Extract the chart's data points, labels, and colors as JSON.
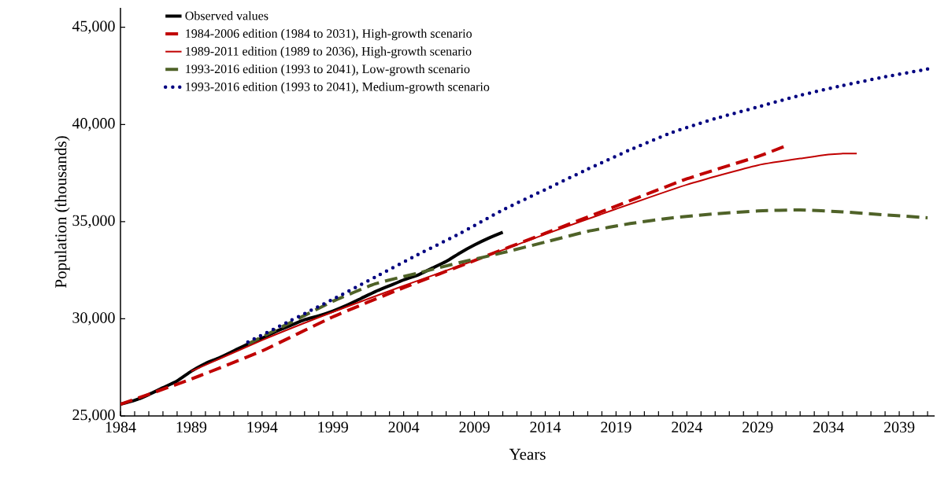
{
  "chart_data": {
    "type": "line",
    "xlabel": "Years",
    "ylabel": "Population (thousands)",
    "xlim": [
      1984,
      2041.5
    ],
    "ylim": [
      25000,
      46000
    ],
    "xticks": [
      {
        "value": 1984,
        "label": "1984"
      },
      {
        "value": 1985,
        "label": null
      },
      {
        "value": 1986,
        "label": null
      },
      {
        "value": 1987,
        "label": null
      },
      {
        "value": 1988,
        "label": null
      },
      {
        "value": 1989,
        "label": "1989"
      },
      {
        "value": 1990,
        "label": null
      },
      {
        "value": 1991,
        "label": null
      },
      {
        "value": 1992,
        "label": null
      },
      {
        "value": 1993,
        "label": null
      },
      {
        "value": 1994,
        "label": "1994"
      },
      {
        "value": 1995,
        "label": null
      },
      {
        "value": 1996,
        "label": null
      },
      {
        "value": 1997,
        "label": null
      },
      {
        "value": 1998,
        "label": null
      },
      {
        "value": 1999,
        "label": "1999"
      },
      {
        "value": 2000,
        "label": null
      },
      {
        "value": 2001,
        "label": null
      },
      {
        "value": 2002,
        "label": null
      },
      {
        "value": 2003,
        "label": null
      },
      {
        "value": 2004,
        "label": "2004"
      },
      {
        "value": 2005,
        "label": null
      },
      {
        "value": 2006,
        "label": null
      },
      {
        "value": 2007,
        "label": null
      },
      {
        "value": 2008,
        "label": null
      },
      {
        "value": 2009,
        "label": "2009"
      },
      {
        "value": 2010,
        "label": null
      },
      {
        "value": 2011,
        "label": null
      },
      {
        "value": 2012,
        "label": null
      },
      {
        "value": 2013,
        "label": null
      },
      {
        "value": 2014,
        "label": "2014"
      },
      {
        "value": 2015,
        "label": null
      },
      {
        "value": 2016,
        "label": null
      },
      {
        "value": 2017,
        "label": null
      },
      {
        "value": 2018,
        "label": null
      },
      {
        "value": 2019,
        "label": "2019"
      },
      {
        "value": 2020,
        "label": null
      },
      {
        "value": 2021,
        "label": null
      },
      {
        "value": 2022,
        "label": null
      },
      {
        "value": 2023,
        "label": null
      },
      {
        "value": 2024,
        "label": "2024"
      },
      {
        "value": 2025,
        "label": null
      },
      {
        "value": 2026,
        "label": null
      },
      {
        "value": 2027,
        "label": null
      },
      {
        "value": 2028,
        "label": null
      },
      {
        "value": 2029,
        "label": "2029"
      },
      {
        "value": 2030,
        "label": null
      },
      {
        "value": 2031,
        "label": null
      },
      {
        "value": 2032,
        "label": null
      },
      {
        "value": 2033,
        "label": null
      },
      {
        "value": 2034,
        "label": "2034"
      },
      {
        "value": 2035,
        "label": null
      },
      {
        "value": 2036,
        "label": null
      },
      {
        "value": 2037,
        "label": null
      },
      {
        "value": 2038,
        "label": null
      },
      {
        "value": 2039,
        "label": "2039"
      },
      {
        "value": 2040,
        "label": null
      },
      {
        "value": 2041,
        "label": null
      }
    ],
    "yticks": [
      {
        "value": 25000,
        "label": "25,000"
      },
      {
        "value": 30000,
        "label": "30,000"
      },
      {
        "value": 35000,
        "label": "35,000"
      },
      {
        "value": 40000,
        "label": "40,000"
      },
      {
        "value": 45000,
        "label": "45,000"
      }
    ],
    "grid": false,
    "legend": "top left",
    "marker": "none",
    "series": [
      {
        "name": "Observed values",
        "color": "#000000",
        "line_style": "solid",
        "x": [
          1984,
          1985,
          1986,
          1987,
          1988,
          1989,
          1990,
          1991,
          1992,
          1993,
          1994,
          1995,
          1996,
          1997,
          1998,
          1999,
          2000,
          2001,
          2002,
          2003,
          2004,
          2005,
          2006,
          2007,
          2008,
          2009,
          2010,
          2011
        ],
        "values": [
          25600,
          25800,
          26100,
          26450,
          26800,
          27300,
          27700,
          28000,
          28350,
          28700,
          29000,
          29350,
          29650,
          29950,
          30150,
          30400,
          30700,
          31050,
          31400,
          31700,
          32000,
          32250,
          32600,
          32950,
          33400,
          33800,
          34150,
          34450
        ]
      },
      {
        "name": "1984-2006 edition (1984 to 2031), High-growth scenario",
        "color": "#c00000",
        "line_style": "dashed",
        "x": [
          1984,
          1989,
          1994,
          1999,
          2004,
          2009,
          2014,
          2019,
          2024,
          2029,
          2031
        ],
        "values": [
          25600,
          26900,
          28350,
          30100,
          31600,
          33000,
          34400,
          35800,
          37200,
          38350,
          38900
        ]
      },
      {
        "name": "1989-2011 edition (1989 to 2036), High-growth scenario",
        "color": "#c00000",
        "line_style": "solid",
        "x": [
          1989,
          1994,
          1999,
          2004,
          2009,
          2014,
          2019,
          2024,
          2029,
          2034,
          2035,
          2036
        ],
        "values": [
          27300,
          28900,
          30350,
          31700,
          33000,
          34350,
          35650,
          36900,
          37900,
          38450,
          38500,
          38500
        ]
      },
      {
        "name": "1993-2016 edition (1993 to 2041), Low-growth scenario",
        "color": "#4f6228",
        "line_style": "dashed",
        "x": [
          1993,
          1996,
          1999,
          2002,
          2005,
          2008,
          2011,
          2014,
          2017,
          2020,
          2023,
          2026,
          2029,
          2032,
          2035,
          2038,
          2041
        ],
        "values": [
          28700,
          29800,
          30900,
          31800,
          32350,
          32900,
          33400,
          33950,
          34500,
          34900,
          35200,
          35400,
          35550,
          35600,
          35500,
          35350,
          35200
        ]
      },
      {
        "name": "1993-2016 edition (1993 to 2041), Medium-growth scenario",
        "color": "#000080",
        "line_style": "dotted",
        "x": [
          1993,
          1996,
          1999,
          2002,
          2005,
          2008,
          2011,
          2014,
          2017,
          2020,
          2023,
          2026,
          2029,
          2032,
          2035,
          2038,
          2041
        ],
        "values": [
          28800,
          29900,
          31000,
          32150,
          33300,
          34400,
          35600,
          36650,
          37700,
          38700,
          39600,
          40300,
          40900,
          41500,
          42000,
          42450,
          42850
        ]
      }
    ]
  }
}
